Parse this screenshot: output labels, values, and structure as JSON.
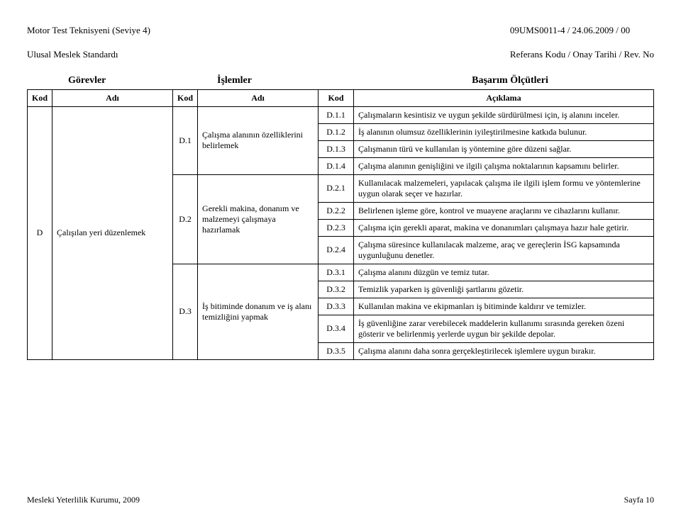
{
  "header": {
    "left_line1": "Motor Test Teknisyeni (Seviye 4)",
    "left_line2": "Ulusal Meslek Standardı",
    "right_line1": "09UMS0011-4 / 24.06.2009  / 00",
    "right_line2": "Referans Kodu / Onay Tarihi / Rev. No"
  },
  "section_titles": {
    "t1": "Görevler",
    "t2": "İşlemler",
    "t3": "Başarım Ölçütleri"
  },
  "columns": {
    "kod": "Kod",
    "adi": "Adı",
    "aciklama": "Açıklama"
  },
  "task": {
    "kod": "D",
    "adi": "Çalışılan yeri düzenlemek"
  },
  "ops": [
    {
      "kod": "D.1",
      "adi": "Çalışma alanının özelliklerini belirlemek",
      "crit": [
        {
          "kod": "D.1.1",
          "text": "Çalışmaların kesintisiz ve uygun şekilde sürdürülmesi için, iş alanını inceler."
        },
        {
          "kod": "D.1.2",
          "text": "İş alanının olumsuz özelliklerinin iyileştirilmesine katkıda bulunur."
        },
        {
          "kod": "D.1.3",
          "text": "Çalışmanın türü ve kullanılan iş yöntemine göre düzeni sağlar."
        },
        {
          "kod": "D.1.4",
          "text": "Çalışma alanının genişliğini ve ilgili çalışma noktalarının kapsamını belirler."
        }
      ]
    },
    {
      "kod": "D.2",
      "adi": "Gerekli makina, donanım ve malzemeyi çalışmaya hazırlamak",
      "crit": [
        {
          "kod": "D.2.1",
          "text": "Kullanılacak malzemeleri, yapılacak çalışma ile ilgili işlem formu ve yöntemlerine uygun olarak seçer ve hazırlar."
        },
        {
          "kod": "D.2.2",
          "text": "Belirlenen işleme göre, kontrol ve muayene araçlarını ve cihazlarını kullanır."
        },
        {
          "kod": "D.2.3",
          "text": "Çalışma için gerekli aparat, makina ve donanımları çalışmaya hazır hale getirir."
        },
        {
          "kod": "D.2.4",
          "text": "Çalışma süresince kullanılacak malzeme, araç ve gereçlerin İSG kapsamında uygunluğunu denetler."
        }
      ]
    },
    {
      "kod": "D.3",
      "adi": "İş bitiminde donanım ve iş alanı temizliğini yapmak",
      "crit": [
        {
          "kod": "D.3.1",
          "text": "Çalışma alanını düzgün ve temiz tutar."
        },
        {
          "kod": "D.3.2",
          "text": "Temizlik yaparken iş güvenliği şartlarını gözetir."
        },
        {
          "kod": "D.3.3",
          "text": "Kullanılan makina ve ekipmanları iş bitiminde kaldırır ve temizler."
        },
        {
          "kod": "D.3.4",
          "text": "İş güvenliğine zarar verebilecek maddelerin kullanımı sırasında gereken özeni gösterir ve belirlenmiş yerlerde uygun bir şekilde depolar."
        },
        {
          "kod": "D.3.5",
          "text": "Çalışma alanını daha sonra gerçekleştirilecek işlemlere uygun bırakır."
        }
      ]
    }
  ],
  "footer": {
    "left": "Mesleki Yeterlilik Kurumu, 2009",
    "right": "Sayfa 10"
  }
}
